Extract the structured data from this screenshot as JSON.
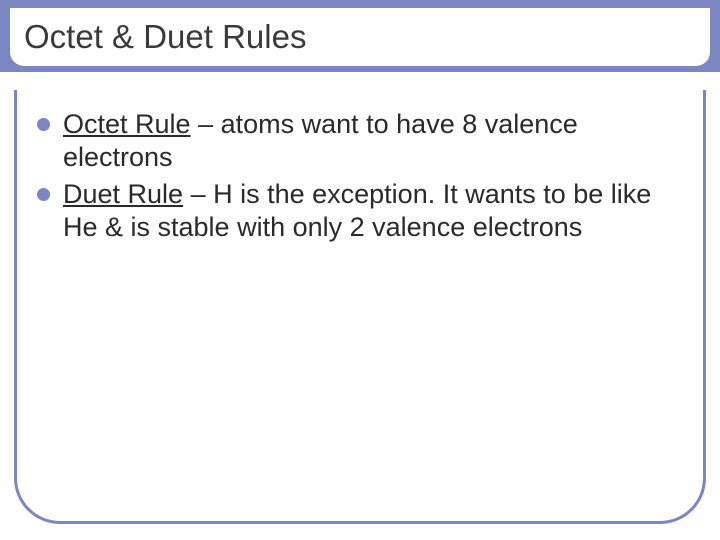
{
  "slide": {
    "title": "Octet & Duet Rules",
    "bullets": [
      {
        "term": "Octet Rule",
        "rest": " – atoms want to have 8 valence electrons"
      },
      {
        "term": "Duet Rule",
        "rest": " – H is the exception. It wants to be like He & is stable with only 2 valence electrons"
      }
    ]
  },
  "style": {
    "accent_color": "#7b86c2",
    "background_color": "#ffffff",
    "title_color": "#3a3a3a",
    "body_color": "#2a2a2a",
    "title_fontsize": 33,
    "body_fontsize": 27,
    "bullet_diameter": 13,
    "frame_border_width": 3,
    "frame_radius": 46,
    "slide_width": 720,
    "slide_height": 540
  }
}
